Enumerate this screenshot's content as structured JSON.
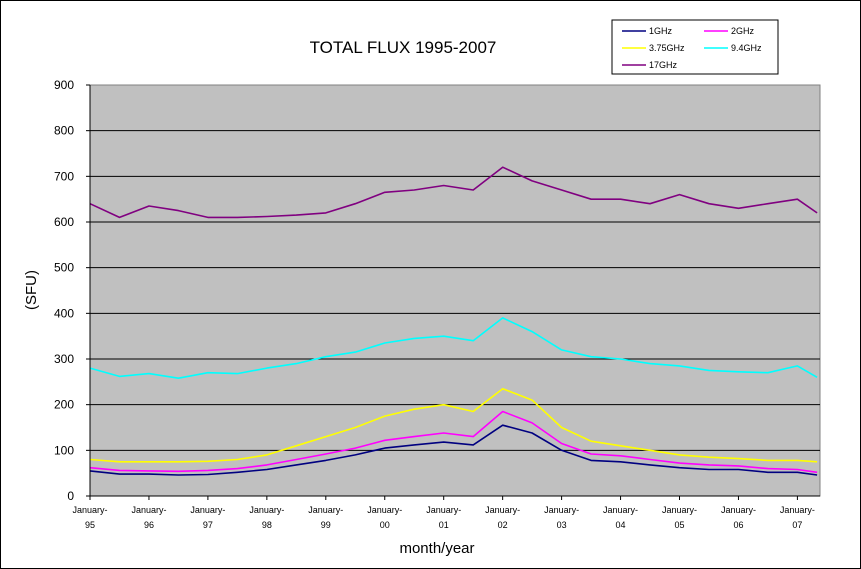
{
  "chart_data": {
    "type": "line",
    "title": "TOTAL FLUX 1995-2007",
    "xlabel": "month/year",
    "ylabel": "(SFU)",
    "ylim": [
      0,
      900
    ],
    "yticks": [
      0,
      100,
      200,
      300,
      400,
      500,
      600,
      700,
      800,
      900
    ],
    "x_tick_labels": [
      {
        "line1": "January-",
        "line2": "95"
      },
      {
        "line1": "January-",
        "line2": "96"
      },
      {
        "line1": "January-",
        "line2": "97"
      },
      {
        "line1": "January-",
        "line2": "98"
      },
      {
        "line1": "January-",
        "line2": "99"
      },
      {
        "line1": "January-",
        "line2": "00"
      },
      {
        "line1": "January-",
        "line2": "01"
      },
      {
        "line1": "January-",
        "line2": "02"
      },
      {
        "line1": "January-",
        "line2": "03"
      },
      {
        "line1": "January-",
        "line2": "04"
      },
      {
        "line1": "January-",
        "line2": "05"
      },
      {
        "line1": "January-",
        "line2": "06"
      },
      {
        "line1": "January-",
        "line2": "07"
      }
    ],
    "x": [
      "1995-01",
      "1995-07",
      "1996-01",
      "1996-07",
      "1997-01",
      "1997-07",
      "1998-01",
      "1998-07",
      "1999-01",
      "1999-07",
      "2000-01",
      "2000-07",
      "2001-01",
      "2001-07",
      "2002-01",
      "2002-07",
      "2003-01",
      "2003-07",
      "2004-01",
      "2004-07",
      "2005-01",
      "2005-07",
      "2006-01",
      "2006-07",
      "2007-01",
      "2007-05"
    ],
    "grid": true,
    "legend_position": "top-right",
    "plot_background": "#c0c0c0",
    "series": [
      {
        "name": "1GHz",
        "color": "#000080",
        "values": [
          55,
          48,
          48,
          46,
          47,
          52,
          58,
          68,
          78,
          90,
          105,
          112,
          118,
          112,
          155,
          138,
          100,
          78,
          75,
          68,
          62,
          58,
          58,
          52,
          52,
          46
        ]
      },
      {
        "name": "2GHz",
        "color": "#ff00ff",
        "values": [
          62,
          56,
          55,
          54,
          56,
          60,
          68,
          80,
          92,
          105,
          122,
          130,
          138,
          130,
          185,
          160,
          115,
          92,
          88,
          80,
          72,
          68,
          66,
          60,
          58,
          52
        ]
      },
      {
        "name": "3.75GHz",
        "color": "#ffff00",
        "values": [
          80,
          75,
          75,
          75,
          76,
          80,
          90,
          110,
          130,
          150,
          175,
          190,
          200,
          185,
          235,
          210,
          150,
          120,
          110,
          100,
          90,
          85,
          82,
          78,
          78,
          75
        ]
      },
      {
        "name": "9.4GHz",
        "color": "#00ffff",
        "values": [
          280,
          262,
          268,
          258,
          270,
          268,
          280,
          290,
          305,
          315,
          335,
          345,
          350,
          340,
          390,
          360,
          320,
          305,
          300,
          290,
          285,
          275,
          272,
          270,
          285,
          260
        ]
      },
      {
        "name": "17GHz",
        "color": "#800080",
        "values": [
          640,
          610,
          635,
          625,
          610,
          610,
          612,
          615,
          620,
          640,
          665,
          670,
          680,
          670,
          720,
          690,
          670,
          650,
          650,
          640,
          660,
          640,
          630,
          640,
          650,
          620
        ]
      }
    ]
  }
}
